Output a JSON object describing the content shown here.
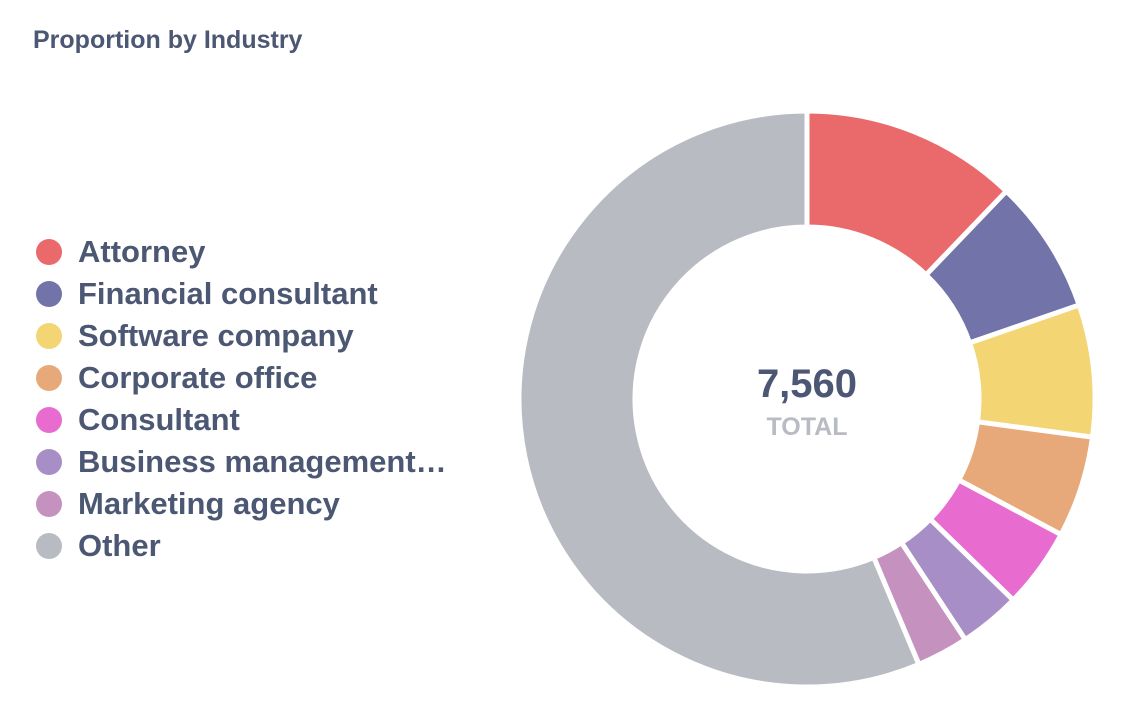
{
  "chart_data": {
    "type": "pie",
    "title": "Proportion by Industry",
    "total_value": "7,560",
    "total_label": "TOTAL",
    "legend_position": "left",
    "categories": [
      "Attorney",
      "Financial consultant",
      "Software company",
      "Corporate office",
      "Consultant",
      "Business management …",
      "Marketing agency",
      "Other"
    ],
    "values": [
      920,
      570,
      560,
      430,
      340,
      260,
      220,
      4260
    ],
    "colors": [
      "#ea6a6c",
      "#7173a9",
      "#f3d574",
      "#e8a97a",
      "#e86bd0",
      "#a88ec6",
      "#c592bf",
      "#b8bbc2"
    ]
  }
}
